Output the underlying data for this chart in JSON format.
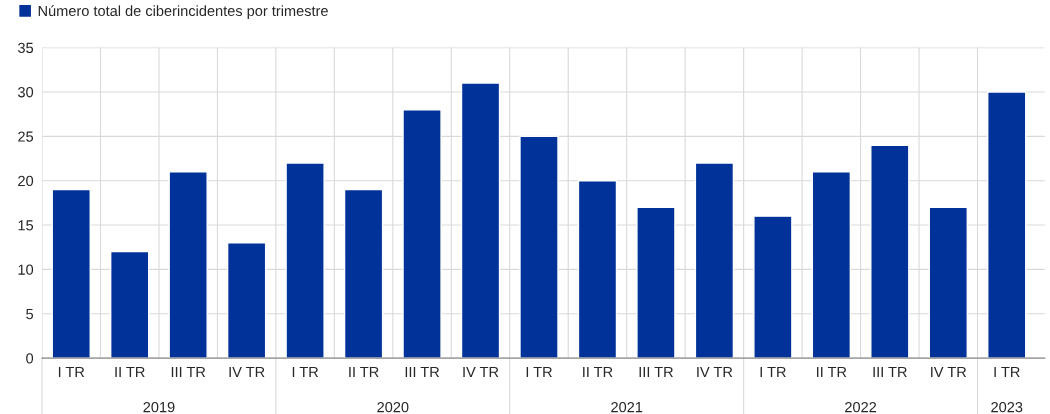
{
  "chart_data": {
    "type": "bar",
    "categories": [
      "I TR",
      "II TR",
      "III TR",
      "IV TR",
      "I TR",
      "II TR",
      "III TR",
      "IV TR",
      "I TR",
      "II TR",
      "III TR",
      "IV TR",
      "I TR",
      "II TR",
      "III TR",
      "IV TR",
      "I TR"
    ],
    "series": [
      {
        "name": "Número total de ciberincidentes por trimestre",
        "color": "#003299",
        "values": [
          19,
          12,
          21,
          13,
          22,
          19,
          28,
          31,
          25,
          20,
          17,
          22,
          16,
          21,
          24,
          17,
          30
        ]
      }
    ],
    "annotations": [
      "2019",
      "2020",
      "2021",
      "2022",
      "2023"
    ],
    "ylim": [
      0,
      35
    ],
    "yticks": [
      0,
      5,
      10,
      15,
      20,
      25,
      30,
      35
    ],
    "grid": true,
    "legend": "top left"
  }
}
